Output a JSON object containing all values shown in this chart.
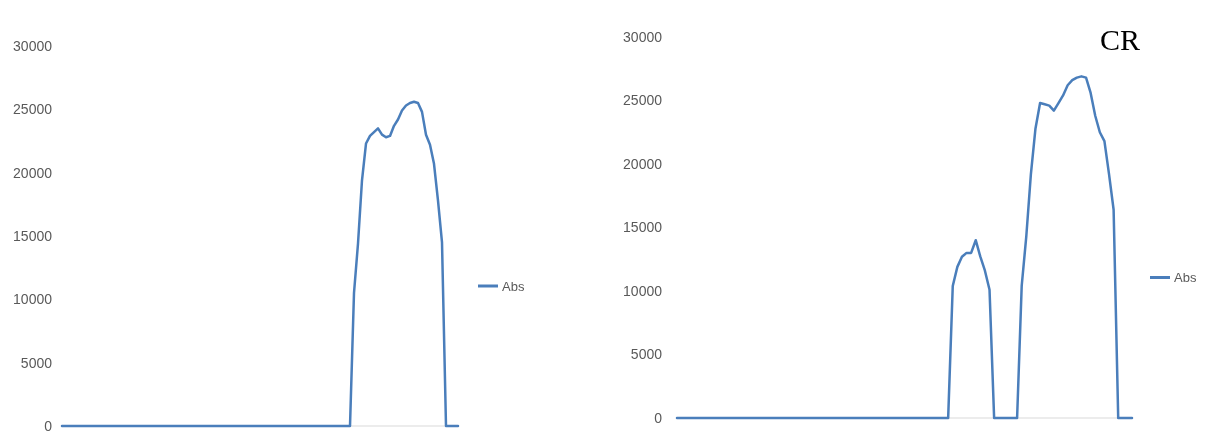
{
  "chart_data": [
    {
      "type": "line",
      "categories": [
        null,
        null,
        null,
        null,
        null,
        null,
        null,
        null,
        null,
        null,
        null,
        null,
        null,
        null,
        null,
        null,
        null,
        null,
        null,
        null,
        null,
        null,
        null,
        null,
        null,
        null,
        null,
        null,
        null,
        null,
        null,
        null,
        null,
        null,
        null,
        null,
        null,
        null,
        null,
        null,
        null,
        null,
        null,
        null,
        null,
        null,
        null,
        null,
        null,
        null,
        null,
        null,
        null,
        null,
        null,
        null,
        null,
        null,
        null,
        null,
        null,
        null,
        null,
        null,
        null,
        null,
        null,
        null,
        null,
        null,
        null,
        null,
        null,
        null,
        null,
        null,
        null,
        null,
        null,
        null,
        null,
        null,
        null,
        null,
        null,
        null,
        null,
        null,
        null,
        null,
        null,
        null,
        null,
        null,
        null,
        null,
        null,
        null,
        null,
        null
      ],
      "series": [
        {
          "name": "Abs",
          "color": "#4a7ebb",
          "values": [
            0,
            0,
            0,
            0,
            0,
            0,
            0,
            0,
            0,
            0,
            0,
            0,
            0,
            0,
            0,
            0,
            0,
            0,
            0,
            0,
            0,
            0,
            0,
            0,
            0,
            0,
            0,
            0,
            0,
            0,
            0,
            0,
            0,
            0,
            0,
            0,
            0,
            0,
            0,
            0,
            0,
            0,
            0,
            0,
            0,
            0,
            0,
            0,
            0,
            0,
            0,
            0,
            0,
            0,
            0,
            0,
            0,
            0,
            0,
            0,
            0,
            0,
            0,
            0,
            0,
            0,
            0,
            0,
            0,
            0,
            0,
            0,
            0,
            10500,
            14400,
            19400,
            22300,
            22900,
            23200,
            23500,
            23000,
            22800,
            22900,
            23700,
            24200,
            24900,
            25300,
            25500,
            25600,
            25500,
            24800,
            23000,
            22200,
            20700,
            17800,
            14500,
            0,
            0,
            0,
            0
          ]
        }
      ],
      "ylim": [
        0,
        30000
      ],
      "yticks": [
        0,
        5000,
        10000,
        15000,
        20000,
        25000,
        30000
      ],
      "tick_labels": "y",
      "legend": "right",
      "marker": "none",
      "line_style": "solid"
    },
    {
      "type": "line",
      "title": "CR",
      "categories": [
        null,
        null,
        null,
        null,
        null,
        null,
        null,
        null,
        null,
        null,
        null,
        null,
        null,
        null,
        null,
        null,
        null,
        null,
        null,
        null,
        null,
        null,
        null,
        null,
        null,
        null,
        null,
        null,
        null,
        null,
        null,
        null,
        null,
        null,
        null,
        null,
        null,
        null,
        null,
        null,
        null,
        null,
        null,
        null,
        null,
        null,
        null,
        null,
        null,
        null,
        null,
        null,
        null,
        null,
        null,
        null,
        null,
        null,
        null,
        null,
        null,
        null,
        null,
        null,
        null,
        null,
        null,
        null,
        null,
        null,
        null,
        null,
        null,
        null,
        null,
        null,
        null,
        null,
        null,
        null,
        null,
        null,
        null,
        null,
        null,
        null,
        null,
        null,
        null,
        null,
        null,
        null,
        null,
        null,
        null,
        null,
        null,
        null,
        null,
        null
      ],
      "series": [
        {
          "name": "Abs",
          "color": "#4a7ebb",
          "values": [
            0,
            0,
            0,
            0,
            0,
            0,
            0,
            0,
            0,
            0,
            0,
            0,
            0,
            0,
            0,
            0,
            0,
            0,
            0,
            0,
            0,
            0,
            0,
            0,
            0,
            0,
            0,
            0,
            0,
            0,
            0,
            0,
            0,
            0,
            0,
            0,
            0,
            0,
            0,
            0,
            0,
            0,
            0,
            0,
            0,
            0,
            0,
            0,
            0,
            0,
            0,
            0,
            0,
            0,
            0,
            0,
            0,
            0,
            0,
            0,
            10400,
            11900,
            12700,
            13000,
            13000,
            14000,
            12700,
            11600,
            10100,
            0,
            0,
            0,
            0,
            0,
            0,
            10400,
            14300,
            19200,
            22800,
            24800,
            24700,
            24600,
            24200,
            24800,
            25400,
            26200,
            26600,
            26800,
            26900,
            26800,
            25600,
            23800,
            22500,
            21800,
            19200,
            16400,
            0,
            0,
            0,
            0
          ]
        }
      ],
      "ylim": [
        0,
        30000
      ],
      "yticks": [
        0,
        5000,
        10000,
        15000,
        20000,
        25000,
        30000
      ],
      "tick_labels": "y",
      "legend": "right",
      "marker": "none",
      "line_style": "solid"
    }
  ]
}
